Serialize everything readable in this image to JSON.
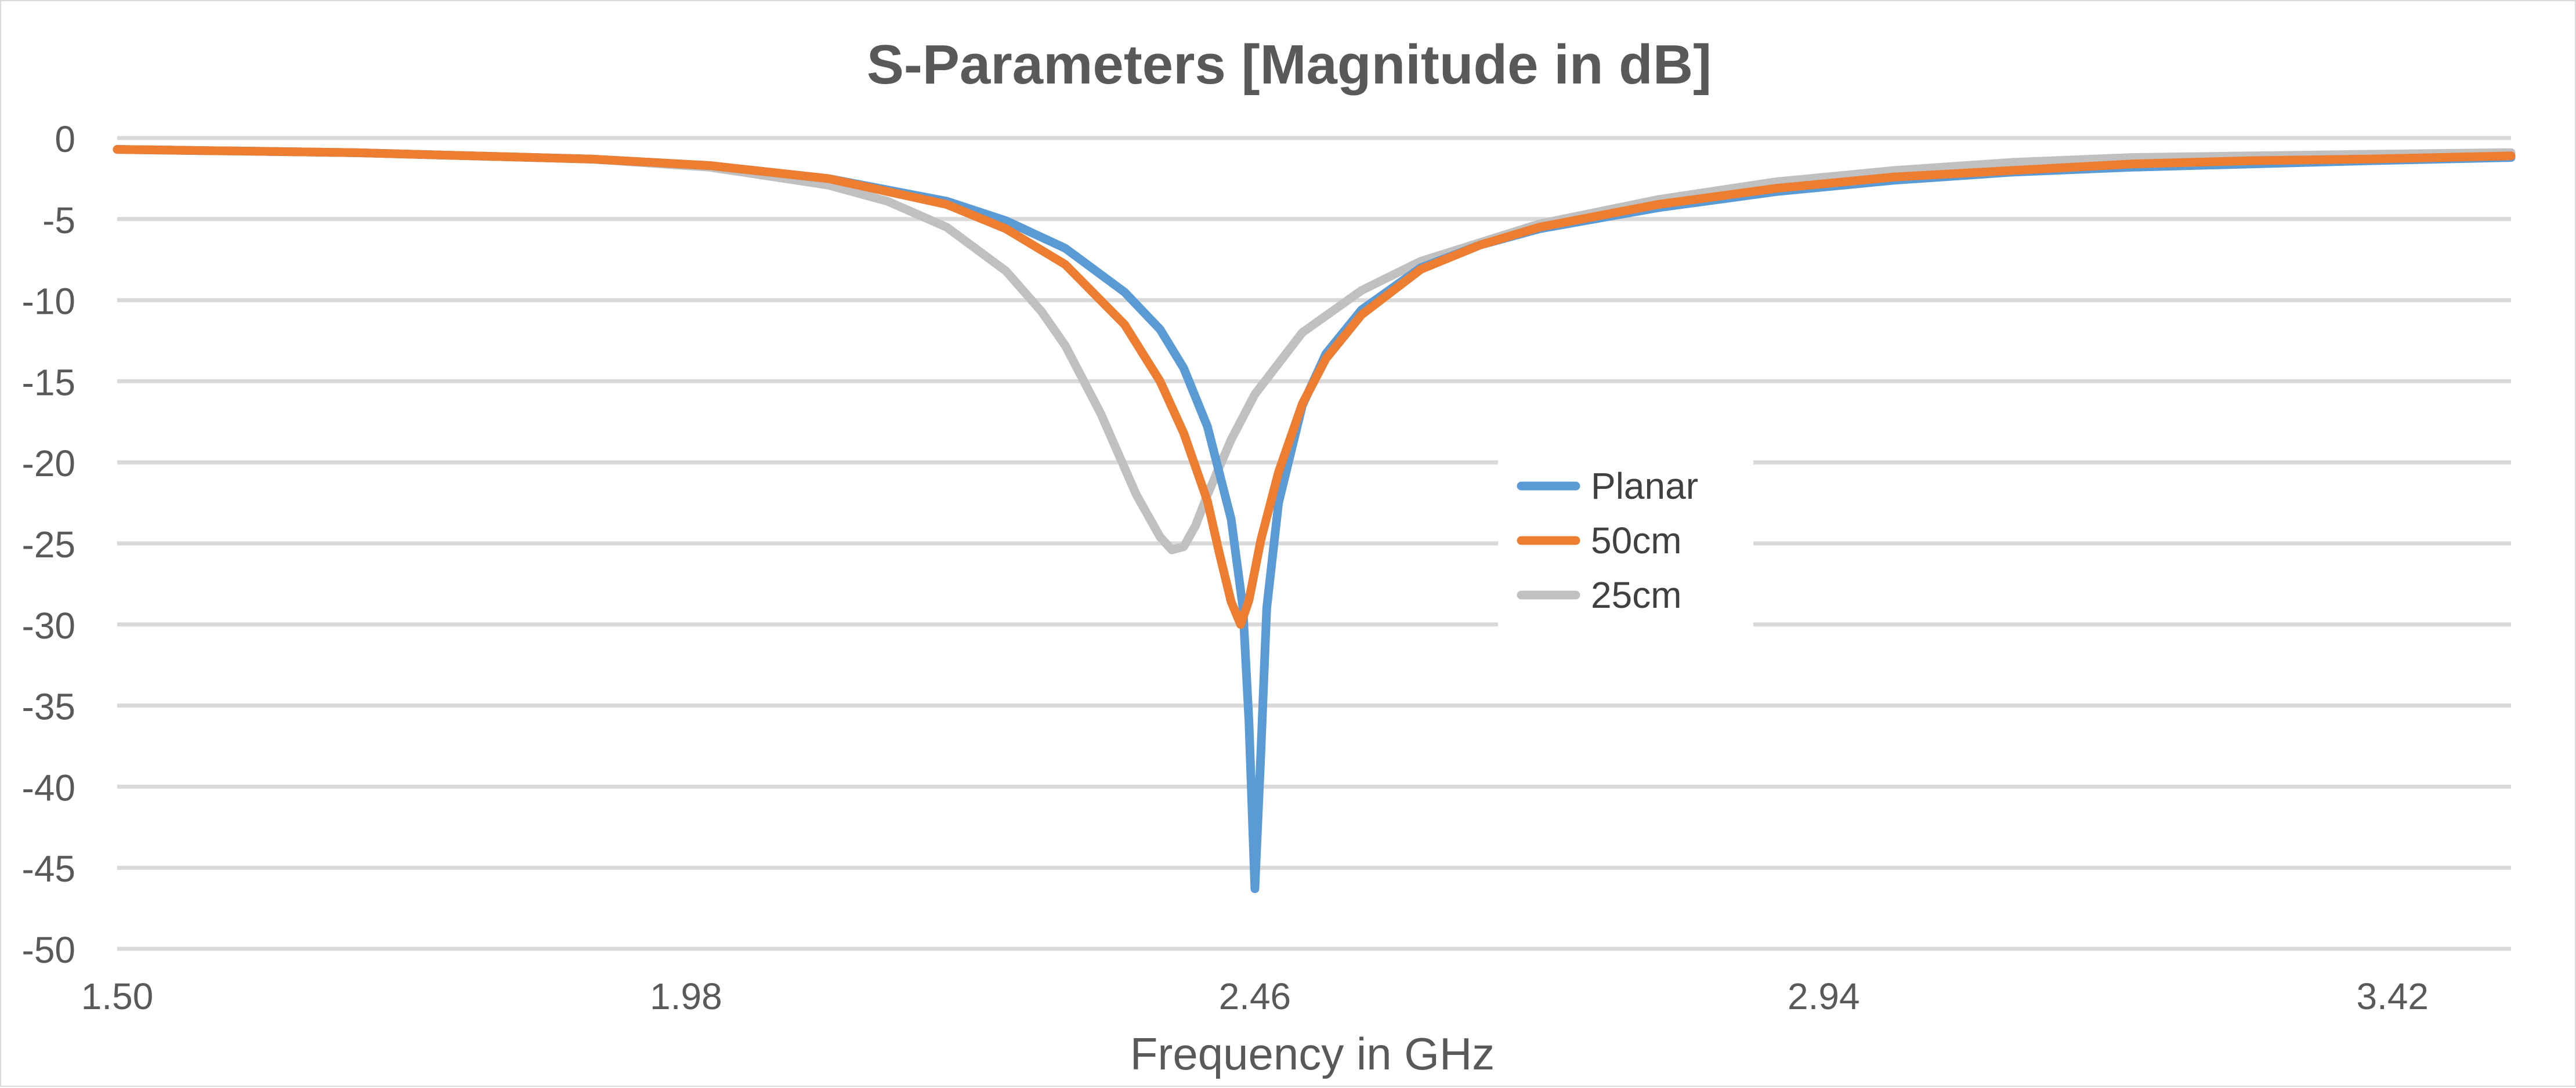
{
  "chart_data": {
    "type": "line",
    "title": "S-Parameters [Magnitude in dB]",
    "xlabel": "Frequency in GHz",
    "ylabel": "",
    "xlim": [
      1.5,
      3.52
    ],
    "ylim": [
      -50,
      0
    ],
    "x_ticks": [
      "1.50",
      "1.98",
      "2.46",
      "2.94",
      "3.42"
    ],
    "x_tick_values": [
      1.5,
      1.98,
      2.46,
      2.94,
      3.42
    ],
    "y_ticks": [
      "0",
      "-5",
      "-10",
      "-15",
      "-20",
      "-25",
      "-30",
      "-35",
      "-40",
      "-45",
      "-50"
    ],
    "y_tick_values": [
      0,
      -5,
      -10,
      -15,
      -20,
      -25,
      -30,
      -35,
      -40,
      -45,
      -50
    ],
    "grid": true,
    "legend_position": "center-right",
    "series": [
      {
        "name": "Planar",
        "color": "#5b9bd5",
        "x": [
          1.5,
          1.7,
          1.9,
          2.0,
          2.1,
          2.2,
          2.25,
          2.3,
          2.35,
          2.38,
          2.4,
          2.42,
          2.44,
          2.45,
          2.455,
          2.46,
          2.465,
          2.47,
          2.48,
          2.5,
          2.52,
          2.55,
          2.6,
          2.65,
          2.7,
          2.8,
          2.9,
          3.0,
          3.1,
          3.2,
          3.3,
          3.4,
          3.52
        ],
        "y": [
          -0.7,
          -0.9,
          -1.3,
          -1.7,
          -2.5,
          -3.9,
          -5.1,
          -6.8,
          -9.5,
          -11.8,
          -14.2,
          -17.8,
          -23.5,
          -29.0,
          -36.0,
          -46.3,
          -38.0,
          -29.0,
          -22.5,
          -16.5,
          -13.3,
          -10.6,
          -8.0,
          -6.6,
          -5.6,
          -4.3,
          -3.3,
          -2.6,
          -2.1,
          -1.8,
          -1.6,
          -1.4,
          -1.2
        ]
      },
      {
        "name": "50cm",
        "color": "#ed7d31",
        "x": [
          1.5,
          1.7,
          1.9,
          2.0,
          2.1,
          2.2,
          2.25,
          2.3,
          2.35,
          2.38,
          2.4,
          2.42,
          2.43,
          2.44,
          2.448,
          2.455,
          2.465,
          2.48,
          2.5,
          2.52,
          2.55,
          2.6,
          2.65,
          2.7,
          2.8,
          2.9,
          3.0,
          3.1,
          3.2,
          3.3,
          3.4,
          3.52
        ],
        "y": [
          -0.7,
          -0.9,
          -1.3,
          -1.7,
          -2.5,
          -4.1,
          -5.6,
          -7.8,
          -11.5,
          -15.0,
          -18.2,
          -22.4,
          -25.6,
          -28.6,
          -30.0,
          -28.5,
          -24.8,
          -20.6,
          -16.4,
          -13.6,
          -10.9,
          -8.1,
          -6.6,
          -5.5,
          -4.1,
          -3.1,
          -2.4,
          -2.0,
          -1.6,
          -1.4,
          -1.3,
          -1.1
        ]
      },
      {
        "name": "25cm",
        "color": "#c0c0c0",
        "x": [
          1.5,
          1.7,
          1.9,
          2.0,
          2.1,
          2.15,
          2.2,
          2.25,
          2.28,
          2.3,
          2.33,
          2.36,
          2.38,
          2.39,
          2.4,
          2.41,
          2.42,
          2.44,
          2.46,
          2.5,
          2.55,
          2.6,
          2.7,
          2.8,
          2.9,
          3.0,
          3.1,
          3.2,
          3.3,
          3.4,
          3.52
        ],
        "y": [
          -0.7,
          -0.9,
          -1.3,
          -1.8,
          -2.9,
          -3.9,
          -5.5,
          -8.2,
          -10.7,
          -12.8,
          -17.0,
          -22.0,
          -24.6,
          -25.4,
          -25.2,
          -23.9,
          -22.0,
          -18.6,
          -15.8,
          -12.0,
          -9.4,
          -7.6,
          -5.3,
          -3.8,
          -2.7,
          -2.0,
          -1.5,
          -1.2,
          -1.1,
          -1.0,
          -0.9
        ]
      }
    ]
  }
}
